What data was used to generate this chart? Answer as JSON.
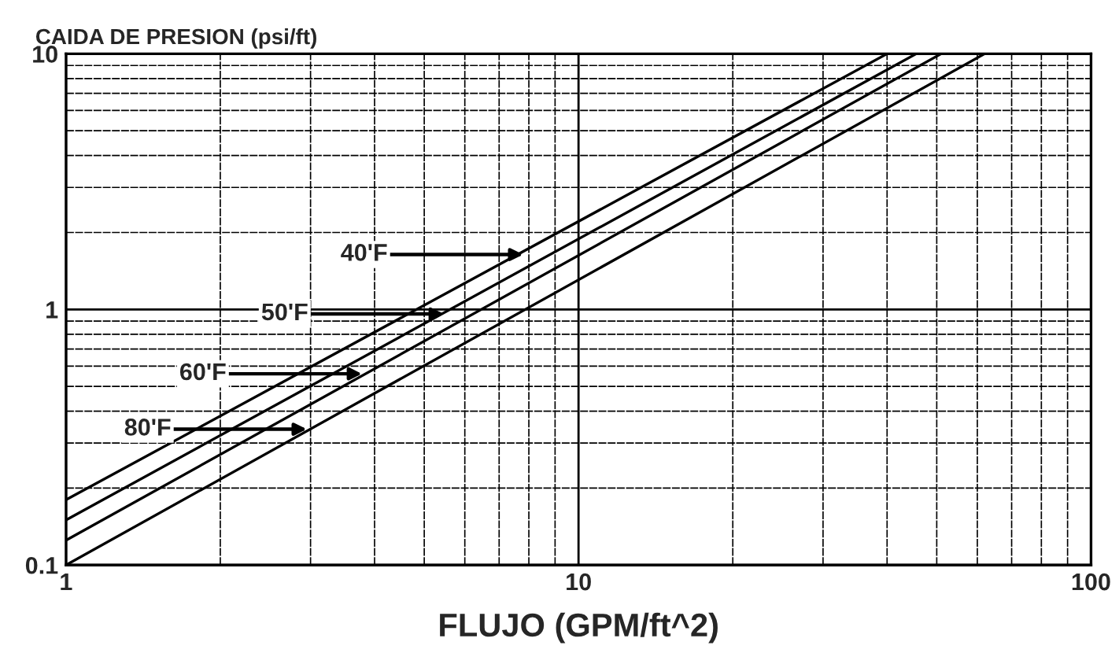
{
  "chart_data": {
    "type": "line",
    "xlabel": "FLUJO (GPM/ft^2)",
    "ylabel": "CAIDA DE PRESION (psi/ft)",
    "log": "xy",
    "xlim": [
      1,
      100
    ],
    "ylim": [
      0.1,
      10
    ],
    "xticks": [
      1,
      10,
      100
    ],
    "yticks": [
      0.1,
      1,
      10
    ],
    "grid": true,
    "marker": "none",
    "line_style": "solid",
    "series": [
      {
        "color": "#000000",
        "x": [
          1,
          40
        ],
        "values": [
          0.18,
          10
        ]
      },
      {
        "color": "#000000",
        "x": [
          1,
          45.6
        ],
        "values": [
          0.15,
          10
        ]
      },
      {
        "color": "#000000",
        "x": [
          1,
          51
        ],
        "values": [
          0.125,
          10
        ]
      },
      {
        "color": "#000000",
        "x": [
          1,
          62
        ],
        "values": [
          0.1,
          10
        ]
      }
    ],
    "annotations": [
      {
        "text": "40'F",
        "x": 7.8,
        "y": 1.64
      },
      {
        "text": "50'F",
        "x": 5.46,
        "y": 0.96
      },
      {
        "text": "60'F",
        "x": 3.78,
        "y": 0.56
      },
      {
        "text": "80'F",
        "x": 2.95,
        "y": 0.34
      }
    ]
  }
}
